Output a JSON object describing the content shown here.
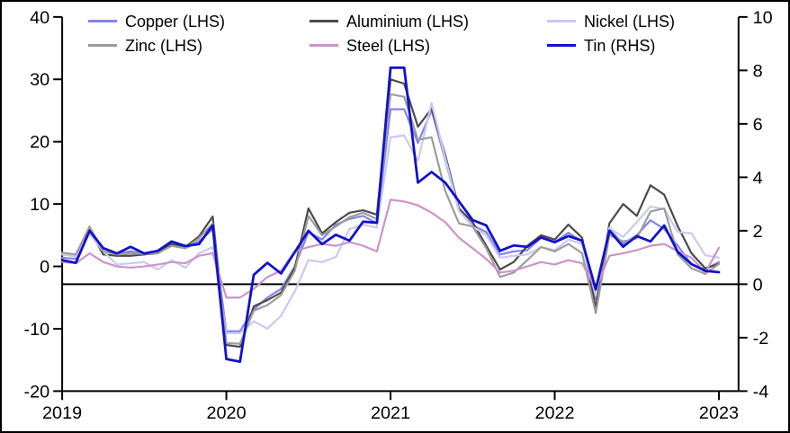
{
  "chart_data": {
    "type": "line",
    "title": "",
    "x_start": "2019-01",
    "x_end": "2023-01",
    "frequency": "monthly",
    "x_tick_labels": [
      "2019",
      "2020",
      "2021",
      "2022",
      "2023"
    ],
    "x_tick_indices": [
      0,
      12,
      24,
      36,
      48
    ],
    "left_axis": {
      "ticks": [
        40,
        30,
        20,
        10,
        0,
        -10,
        -20
      ],
      "range": [
        -20,
        40
      ]
    },
    "right_axis": {
      "ticks": [
        10,
        8,
        6,
        4,
        2,
        0,
        -2,
        -4
      ],
      "range": [
        -4,
        10
      ]
    },
    "zero_line_right_axis_value": 0,
    "grid": false,
    "legend_position": "top-inside",
    "series": [
      {
        "name": "Copper (LHS)",
        "axis": "left",
        "color": "#8484ea",
        "values": [
          1.4,
          1.2,
          5.5,
          2.9,
          2.1,
          2.4,
          2.1,
          2.2,
          3.6,
          2.9,
          4.0,
          6.0,
          -10.4,
          -10.4,
          -6.9,
          -5.0,
          -3.6,
          0.0,
          5.5,
          4.3,
          6.7,
          7.6,
          8.1,
          6.9,
          25.2,
          25.2,
          19.8,
          25.0,
          17.1,
          8.9,
          6.6,
          5.5,
          1.9,
          2.4,
          2.6,
          4.6,
          3.9,
          5.4,
          4.0,
          -5.3,
          6.0,
          3.6,
          5.0,
          7.4,
          6.0,
          3.3,
          0.3,
          -0.5,
          0.7
        ]
      },
      {
        "name": "Aluminium (LHS)",
        "axis": "left",
        "color": "#4a4a4a",
        "values": [
          0.8,
          0.6,
          5.9,
          1.9,
          1.7,
          1.7,
          1.9,
          2.1,
          3.6,
          3.1,
          4.8,
          8.0,
          -12.6,
          -12.9,
          -6.4,
          -5.4,
          -4.2,
          -0.2,
          9.3,
          5.3,
          7.1,
          8.6,
          9.0,
          8.3,
          30.0,
          29.3,
          22.4,
          25.3,
          17.9,
          9.3,
          7.1,
          3.3,
          -0.5,
          0.7,
          3.3,
          5.0,
          4.3,
          6.7,
          4.6,
          -6.7,
          6.9,
          10.0,
          8.1,
          13.0,
          11.5,
          6.4,
          2.1,
          -0.3,
          0.4
        ]
      },
      {
        "name": "Nickel (LHS)",
        "axis": "left",
        "color": "#c9c9f4",
        "values": [
          1.9,
          1.6,
          5.2,
          2.4,
          0.3,
          0.5,
          0.7,
          -0.5,
          1.0,
          -0.2,
          2.1,
          3.1,
          -10.7,
          -10.7,
          -8.8,
          -10.0,
          -7.9,
          -4.0,
          1.0,
          0.7,
          1.5,
          6.0,
          6.7,
          6.2,
          20.7,
          21.0,
          16.9,
          26.2,
          17.4,
          8.9,
          6.4,
          5.0,
          1.4,
          1.7,
          1.9,
          3.1,
          2.6,
          4.3,
          3.6,
          -4.7,
          6.2,
          4.7,
          7.1,
          9.6,
          9.2,
          5.5,
          5.3,
          1.8,
          1.4
        ]
      },
      {
        "name": "Zinc (LHS)",
        "axis": "left",
        "color": "#9c9c9c",
        "values": [
          2.2,
          1.9,
          6.4,
          2.4,
          1.9,
          2.1,
          2.0,
          2.1,
          3.3,
          2.9,
          4.5,
          6.9,
          -12.3,
          -12.4,
          -7.1,
          -6.2,
          -4.6,
          -0.7,
          8.1,
          5.0,
          6.4,
          7.9,
          8.6,
          7.6,
          27.6,
          27.2,
          20.3,
          20.7,
          12.1,
          6.9,
          6.4,
          2.9,
          -1.7,
          -1.0,
          1.0,
          3.1,
          2.4,
          3.6,
          2.1,
          -7.5,
          5.0,
          4.0,
          4.5,
          8.8,
          9.3,
          1.9,
          -0.3,
          -1.2,
          0.4
        ]
      },
      {
        "name": "Steel (LHS)",
        "axis": "left",
        "color": "#c994ca",
        "values": [
          0.7,
          0.5,
          2.1,
          0.7,
          0.0,
          -0.2,
          0.0,
          0.3,
          0.7,
          0.5,
          1.7,
          2.1,
          -5.0,
          -5.0,
          -3.6,
          -1.7,
          -0.7,
          2.4,
          3.1,
          3.6,
          3.3,
          3.9,
          3.3,
          2.4,
          10.7,
          10.4,
          9.8,
          8.6,
          7.1,
          4.6,
          2.9,
          1.2,
          -1.0,
          -0.7,
          0.0,
          0.7,
          0.3,
          1.0,
          0.5,
          -3.6,
          1.7,
          2.1,
          2.6,
          3.3,
          3.6,
          2.4,
          1.4,
          -1.0,
          3.0
        ]
      },
      {
        "name": "Tin (RHS)",
        "axis": "right",
        "color": "#1111cd",
        "values": [
          0.9,
          0.8,
          2.0,
          1.35,
          1.15,
          1.4,
          1.15,
          1.25,
          1.6,
          1.43,
          1.5,
          2.2,
          -2.8,
          -2.9,
          0.35,
          0.8,
          0.4,
          1.2,
          2.0,
          1.5,
          1.85,
          1.63,
          2.34,
          2.3,
          8.1,
          8.1,
          3.8,
          4.2,
          3.8,
          3.1,
          2.4,
          2.2,
          1.25,
          1.45,
          1.4,
          1.75,
          1.57,
          1.8,
          1.63,
          -0.2,
          2.0,
          1.4,
          1.8,
          1.6,
          2.2,
          1.2,
          0.75,
          0.5,
          0.45
        ]
      }
    ]
  },
  "legend": {
    "items": [
      "Copper (LHS)",
      "Aluminium (LHS)",
      "Nickel (LHS)",
      "Zinc (LHS)",
      "Steel (LHS)",
      "Tin (RHS)"
    ]
  },
  "colors": {
    "axis": "#000000",
    "background": "#ffffff",
    "text": "#000000"
  }
}
